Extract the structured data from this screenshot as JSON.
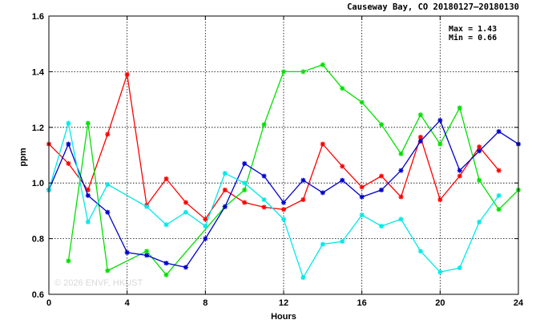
{
  "chart_data": {
    "type": "line",
    "title": "Causeway Bay, CO 20180127–20180130",
    "xlabel": "Hours",
    "ylabel": "ppm",
    "xlim": [
      0,
      24
    ],
    "ylim": [
      0.6,
      1.6
    ],
    "x_ticks": [
      "0",
      "4",
      "8",
      "12",
      "16",
      "20",
      "24"
    ],
    "y_ticks": [
      "0.6",
      "0.8",
      "1.0",
      "1.2",
      "1.4",
      "1.6"
    ],
    "grid": true,
    "stats": {
      "max_label": "Max = 1.43",
      "min_label": "Min = 0.66"
    },
    "watermark": "© 2026  ENVF, HKUST",
    "colors": {
      "red": "#ff0000",
      "green": "#00e000",
      "blue": "#0000cc",
      "cyan": "#00e8e8"
    },
    "series": [
      {
        "color_key": "red",
        "points": [
          [
            0,
            1.14
          ],
          [
            1,
            1.07
          ],
          [
            2,
            0.975
          ],
          [
            3,
            1.175
          ],
          [
            4,
            1.39
          ],
          [
            5,
            0.92
          ],
          [
            6,
            1.015
          ],
          [
            7,
            0.93
          ],
          [
            8,
            0.87
          ],
          [
            9,
            0.975
          ],
          [
            10,
            0.93
          ],
          [
            11,
            0.913
          ],
          [
            12,
            0.905
          ],
          [
            13,
            0.94
          ],
          [
            14,
            1.14
          ],
          [
            15,
            1.06
          ],
          [
            16,
            0.985
          ],
          [
            17,
            1.025
          ],
          [
            18,
            0.95
          ],
          [
            19,
            1.165
          ],
          [
            20,
            0.94
          ],
          [
            21,
            1.025
          ],
          [
            22,
            1.13
          ],
          [
            23,
            1.045
          ]
        ]
      },
      {
        "color_key": "green",
        "points": [
          [
            1,
            0.72
          ],
          [
            2,
            1.215
          ],
          [
            3,
            0.685
          ],
          [
            5,
            0.755
          ],
          [
            6,
            0.67
          ],
          [
            9,
            0.915
          ],
          [
            10,
            0.975
          ],
          [
            11,
            1.21
          ],
          [
            12,
            1.4
          ],
          [
            13,
            1.4
          ],
          [
            14,
            1.425
          ],
          [
            15,
            1.34
          ],
          [
            16,
            1.29
          ],
          [
            17,
            1.21
          ],
          [
            18,
            1.105
          ],
          [
            19,
            1.245
          ],
          [
            20,
            1.14
          ],
          [
            21,
            1.27
          ],
          [
            22,
            1.01
          ],
          [
            23,
            0.905
          ],
          [
            24,
            0.975
          ]
        ]
      },
      {
        "color_key": "blue",
        "points": [
          [
            0,
            0.975
          ],
          [
            1,
            1.14
          ],
          [
            2,
            0.955
          ],
          [
            3,
            0.895
          ],
          [
            4,
            0.75
          ],
          [
            5,
            0.74
          ],
          [
            6,
            0.712
          ],
          [
            7,
            0.697
          ],
          [
            8,
            0.8
          ],
          [
            9,
            0.915
          ],
          [
            10,
            1.07
          ],
          [
            11,
            1.025
          ],
          [
            12,
            0.93
          ],
          [
            13,
            1.01
          ],
          [
            14,
            0.965
          ],
          [
            15,
            1.01
          ],
          [
            16,
            0.95
          ],
          [
            17,
            0.975
          ],
          [
            18,
            1.045
          ],
          [
            19,
            1.15
          ],
          [
            20,
            1.225
          ],
          [
            21,
            1.045
          ],
          [
            22,
            1.115
          ],
          [
            23,
            1.185
          ],
          [
            24,
            1.14
          ]
        ]
      },
      {
        "color_key": "cyan",
        "points": [
          [
            0,
            0.975
          ],
          [
            1,
            1.215
          ],
          [
            2,
            0.86
          ],
          [
            3,
            0.995
          ],
          [
            5,
            0.915
          ],
          [
            6,
            0.85
          ],
          [
            7,
            0.895
          ],
          [
            8,
            0.845
          ],
          [
            9,
            1.035
          ],
          [
            10,
            1.0
          ],
          [
            11,
            0.94
          ],
          [
            12,
            0.87
          ],
          [
            13,
            0.66
          ],
          [
            14,
            0.78
          ],
          [
            15,
            0.79
          ],
          [
            16,
            0.885
          ],
          [
            17,
            0.845
          ],
          [
            18,
            0.87
          ],
          [
            19,
            0.755
          ],
          [
            20,
            0.68
          ],
          [
            21,
            0.695
          ],
          [
            22,
            0.86
          ],
          [
            23,
            0.955
          ]
        ]
      }
    ]
  }
}
